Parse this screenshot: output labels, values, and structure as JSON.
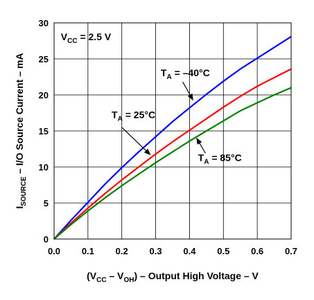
{
  "chart_data": {
    "type": "line",
    "title": "",
    "xlabel": {
      "parts": [
        {
          "t": "(V",
          "sub": false
        },
        {
          "t": "CC",
          "sub": true
        },
        {
          "t": " – V",
          "sub": false
        },
        {
          "t": "OH",
          "sub": true
        },
        {
          "t": ") – Output High Voltage – V",
          "sub": false
        }
      ]
    },
    "ylabel": {
      "parts": [
        {
          "t": "I",
          "sub": false
        },
        {
          "t": "SOURCE",
          "sub": true
        },
        {
          "t": " – I/O Source Current – mA",
          "sub": false
        }
      ]
    },
    "xlim": [
      0,
      0.7
    ],
    "ylim": [
      0,
      30
    ],
    "xticks": [
      0.0,
      0.1,
      0.2,
      0.3,
      0.4,
      0.5,
      0.6,
      0.7
    ],
    "xtick_labels": [
      "0.0",
      "0.1",
      "0.2",
      "0.3",
      "0.4",
      "0.5",
      "0.6",
      "0.7"
    ],
    "yticks": [
      0,
      5,
      10,
      15,
      20,
      25,
      30
    ],
    "ytick_labels": [
      "0",
      "5",
      "10",
      "15",
      "20",
      "25",
      "30"
    ],
    "grid": true,
    "series": [
      {
        "key": "ta-minus40",
        "color": "#0000ff",
        "x": [
          0.0,
          0.05,
          0.1,
          0.15,
          0.2,
          0.25,
          0.3,
          0.35,
          0.4,
          0.45,
          0.5,
          0.55,
          0.6,
          0.65,
          0.7
        ],
        "y": [
          0,
          2.6,
          5.1,
          7.6,
          9.9,
          12.1,
          14.2,
          16.3,
          18.2,
          20.1,
          21.9,
          23.6,
          25.1,
          26.6,
          28.1
        ]
      },
      {
        "key": "ta-25",
        "color": "#ff0000",
        "x": [
          0.0,
          0.05,
          0.1,
          0.15,
          0.2,
          0.25,
          0.3,
          0.35,
          0.4,
          0.45,
          0.5,
          0.55,
          0.6,
          0.65,
          0.7
        ],
        "y": [
          0,
          2.2,
          4.3,
          6.3,
          8.2,
          10.0,
          11.8,
          13.5,
          15.1,
          16.7,
          18.3,
          19.8,
          21.2,
          22.4,
          23.6
        ]
      },
      {
        "key": "ta-85",
        "color": "#008000",
        "x": [
          0.0,
          0.05,
          0.1,
          0.15,
          0.2,
          0.25,
          0.3,
          0.35,
          0.4,
          0.45,
          0.5,
          0.55,
          0.6,
          0.65,
          0.7
        ],
        "y": [
          0,
          2.0,
          3.9,
          5.7,
          7.4,
          9.0,
          10.6,
          12.1,
          13.6,
          15.0,
          16.4,
          17.8,
          18.9,
          20.0,
          21.0
        ]
      }
    ],
    "annotations": [
      {
        "key": "vcc",
        "at": [
          0.02,
          27.6
        ],
        "parts": [
          {
            "t": "V",
            "sub": false
          },
          {
            "t": "CC",
            "sub": true
          },
          {
            "t": " = 2.5 V",
            "sub": false
          }
        ]
      },
      {
        "key": "ta-minus40",
        "at": [
          0.315,
          22.6
        ],
        "arrow": [
          [
            0.38,
            21.8
          ],
          [
            0.41,
            19.3
          ]
        ],
        "parts": [
          {
            "t": "T",
            "sub": false
          },
          {
            "t": "A",
            "sub": true
          },
          {
            "t": " = –40°C",
            "sub": false
          }
        ]
      },
      {
        "key": "ta-25",
        "at": [
          0.17,
          16.8
        ],
        "arrow": [
          [
            0.2,
            15.5
          ],
          [
            0.284,
            11.7
          ]
        ],
        "parts": [
          {
            "t": "T",
            "sub": false
          },
          {
            "t": "A",
            "sub": true
          },
          {
            "t": " = 25°C",
            "sub": false
          }
        ]
      },
      {
        "key": "ta-85",
        "at": [
          0.425,
          10.8
        ],
        "arrow": [
          [
            0.447,
            11.9
          ],
          [
            0.421,
            14.0
          ]
        ],
        "parts": [
          {
            "t": "T",
            "sub": false
          },
          {
            "t": "A",
            "sub": true
          },
          {
            "t": " = 85°C",
            "sub": false
          }
        ]
      }
    ]
  }
}
